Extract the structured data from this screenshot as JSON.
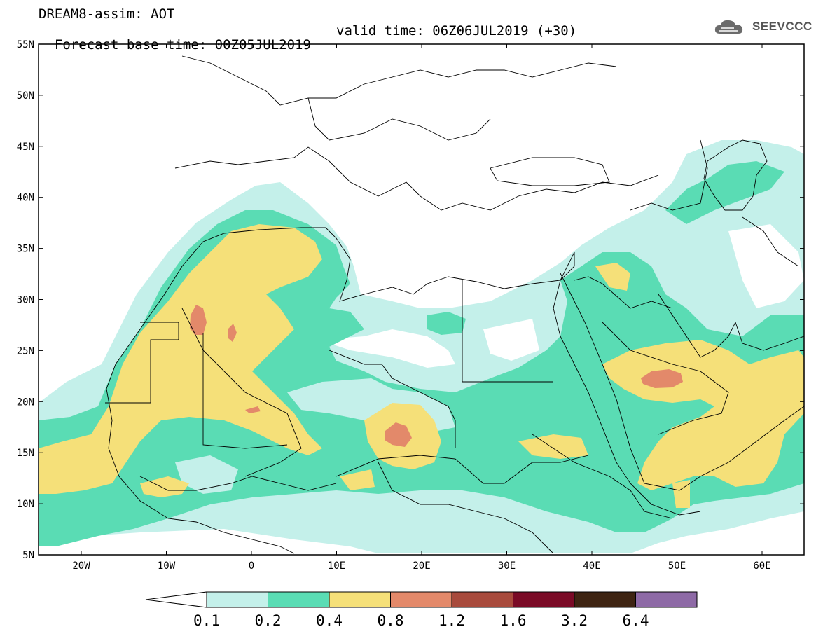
{
  "header": {
    "title": "DREAM8-assim: AOT",
    "base_time": "Forecast base time: 00Z05JUL2019",
    "valid_time": "valid time: 06Z06JUL2019 (+30)"
  },
  "logo": {
    "text": "SEEVCCC",
    "icon": "cloud-icon"
  },
  "map": {
    "lat_labels": [
      "55N",
      "50N",
      "45N",
      "40N",
      "35N",
      "30N",
      "25N",
      "20N",
      "15N",
      "10N",
      "5N"
    ],
    "lon_labels": [
      "20W",
      "10W",
      "0",
      "10E",
      "20E",
      "30E",
      "40E",
      "50E",
      "60E"
    ],
    "colors": {
      "c01": "#c4f0ea",
      "c02": "#5adcb4",
      "c04": "#f5e079",
      "c08": "#e3896a",
      "border": "#000000"
    }
  },
  "colorbar": {
    "labels": [
      "0.1",
      "0.2",
      "0.4",
      "0.8",
      "1.2",
      "1.6",
      "3.2",
      "6.4"
    ],
    "colors": [
      "#ffffff",
      "#c4f0ea",
      "#5adcb4",
      "#f5e079",
      "#e3896a",
      "#a84a3c",
      "#7a0a26",
      "#3e2412",
      "#8e6aa6"
    ]
  }
}
